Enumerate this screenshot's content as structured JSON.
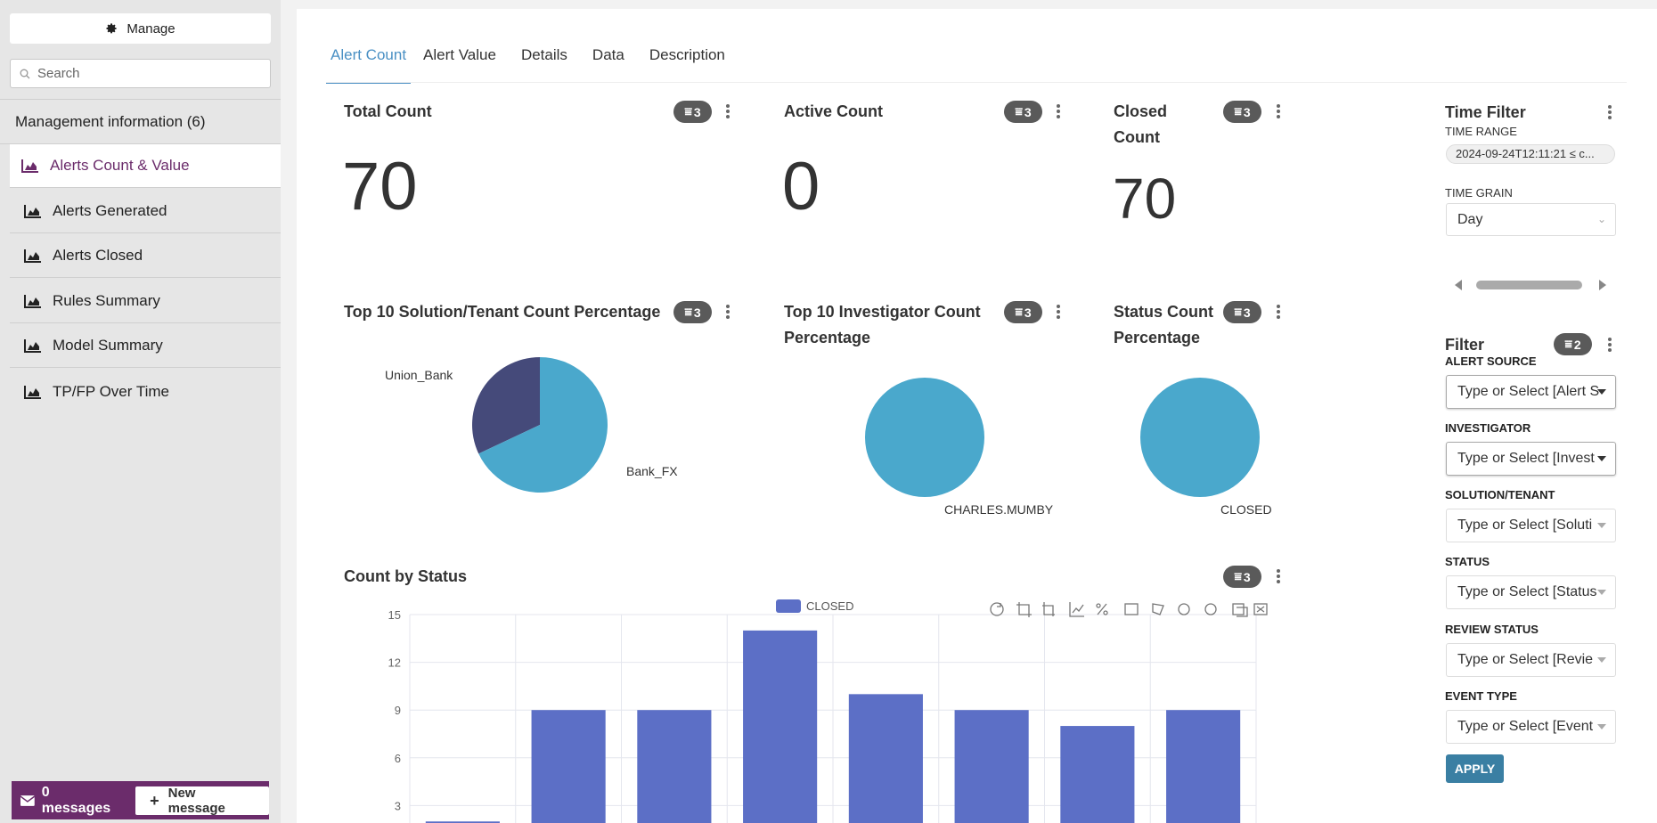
{
  "sidebar": {
    "manage_label": "Manage",
    "search_placeholder": "Search",
    "section_title": "Management information (6)",
    "items": [
      {
        "label": "Alerts Count & Value",
        "active": true
      },
      {
        "label": "Alerts Generated"
      },
      {
        "label": "Alerts Closed"
      },
      {
        "label": "Rules Summary"
      },
      {
        "label": "Model Summary"
      },
      {
        "label": "TP/FP Over Time"
      }
    ],
    "messages_label": "0 messages",
    "new_message_label": "New message"
  },
  "tabs": [
    "Alert Count",
    "Alert Value",
    "Details",
    "Data",
    "Description"
  ],
  "cards": {
    "total": {
      "title": "Total Count",
      "value": "70",
      "filters": "3"
    },
    "active": {
      "title": "Active Count",
      "value": "0",
      "filters": "3"
    },
    "closed": {
      "title_line1": "Closed",
      "title_line2": "Count",
      "value": "70",
      "filters": "3"
    },
    "solution_pie": {
      "title": "Top 10 Solution/Tenant Count Percentage",
      "filters": "3"
    },
    "investigator_pie": {
      "title_line1": "Top 10 Investigator Count",
      "title_line2": "Percentage",
      "filters": "3"
    },
    "status_pie": {
      "title_line1": "Status Count",
      "title_line2": "Percentage",
      "filters": "3"
    },
    "count_by_status": {
      "title": "Count by Status",
      "filters": "3"
    }
  },
  "chart_data": [
    {
      "type": "pie",
      "categories": [
        "Union_Bank",
        "Bank_FX"
      ],
      "values": [
        32,
        68
      ],
      "colors": [
        "#454a7a",
        "#4aa8cc"
      ]
    },
    {
      "type": "pie",
      "categories": [
        "CHARLES.MUMBY"
      ],
      "values": [
        100
      ],
      "colors": [
        "#4aa8cc"
      ]
    },
    {
      "type": "pie",
      "categories": [
        "CLOSED"
      ],
      "values": [
        100
      ],
      "colors": [
        "#4aa8cc"
      ]
    },
    {
      "type": "bar",
      "series": [
        {
          "name": "CLOSED",
          "values": [
            2,
            9,
            9,
            14,
            10,
            9,
            8,
            9
          ]
        }
      ],
      "yticks": [
        "3",
        "6",
        "9",
        "12",
        "15"
      ],
      "ylim": [
        0,
        15
      ],
      "grid": true,
      "legend": "top-center",
      "color": "#5c6fc6"
    }
  ],
  "right_panel": {
    "time_filter_title": "Time Filter",
    "time_range_label": "TIME RANGE",
    "time_range_value": "2024-09-24T12:11:21 ≤ c...",
    "time_grain_label": "TIME GRAIN",
    "time_grain_value": "Day",
    "filter_title": "Filter",
    "filter_count": "2",
    "fields": [
      {
        "label": "ALERT SOURCE",
        "placeholder": "Type or Select [Alert S"
      },
      {
        "label": "INVESTIGATOR",
        "placeholder": "Type or Select [Invest"
      },
      {
        "label": "SOLUTION/TENANT",
        "placeholder": "Type or Select [Soluti"
      },
      {
        "label": "STATUS",
        "placeholder": "Type or Select [Status"
      },
      {
        "label": "REVIEW STATUS",
        "placeholder": "Type or Select [Revie"
      },
      {
        "label": "EVENT TYPE",
        "placeholder": "Type or Select [Event"
      }
    ],
    "apply_label": "APPLY"
  }
}
